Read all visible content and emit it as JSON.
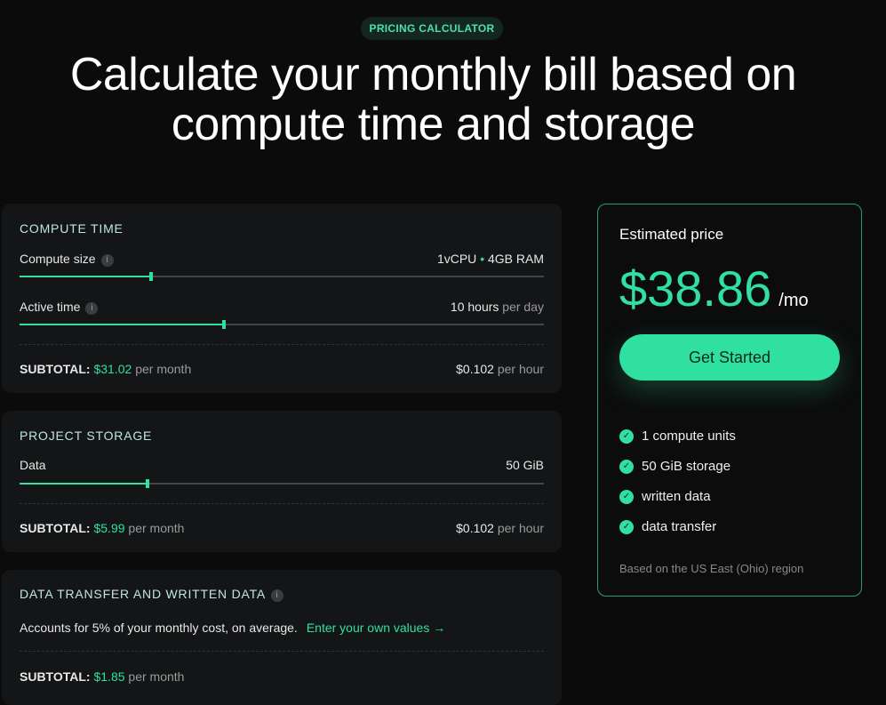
{
  "badge": "PRICING CALCULATOR",
  "title_line1": "Calculate your monthly bill based on",
  "title_line2": "compute time and storage",
  "accent": "#2fe0a0",
  "compute": {
    "heading": "COMPUTE TIME",
    "size_label": "Compute size",
    "size_value_cpu": "1vCPU",
    "size_value_sep": "•",
    "size_value_ram": "4GB RAM",
    "size_fraction": 0.25,
    "active_label": "Active time",
    "active_value": "10 hours",
    "active_unit": "per day",
    "active_fraction": 0.39,
    "subtotal_label": "SUBTOTAL:",
    "subtotal_value": "$31.02",
    "subtotal_unit": "per month",
    "rate_value": "$0.102",
    "rate_unit": "per hour"
  },
  "storage": {
    "heading": "PROJECT STORAGE",
    "data_label": "Data",
    "data_value": "50 GiB",
    "data_fraction": 0.244,
    "subtotal_label": "SUBTOTAL:",
    "subtotal_value": "$5.99",
    "subtotal_unit": "per month",
    "rate_value": "$0.102",
    "rate_unit": "per hour"
  },
  "transfer": {
    "heading": "DATA TRANSFER AND WRITTEN DATA",
    "desc": "Accounts for 5% of your monthly cost, on average.",
    "link": "Enter your own values →",
    "subtotal_label": "SUBTOTAL:",
    "subtotal_value": "$1.85",
    "subtotal_unit": "per month"
  },
  "estimate": {
    "heading": "Estimated price",
    "amount": "$38.86",
    "unit": "/mo",
    "cta": "Get Started",
    "features": [
      "1 compute units",
      "50 GiB storage",
      "written data",
      "data transfer"
    ],
    "note": "Based on the US East (Ohio) region"
  }
}
